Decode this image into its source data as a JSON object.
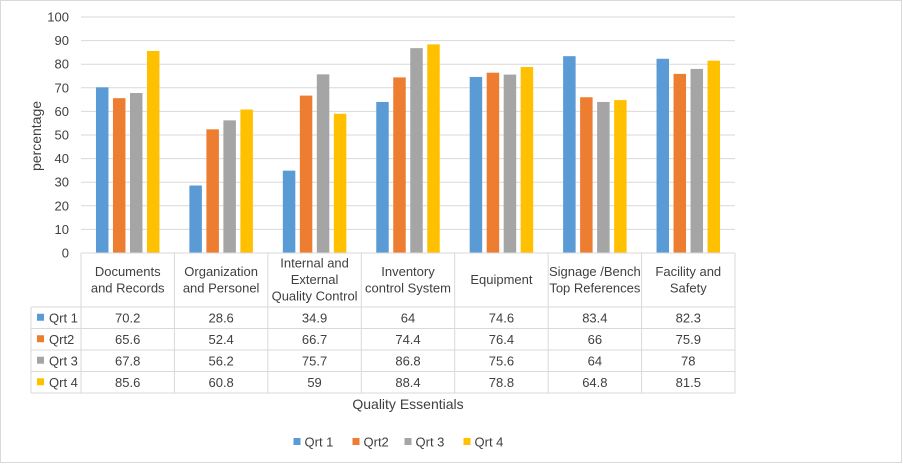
{
  "chart_data": {
    "type": "bar",
    "title": "",
    "xlabel": "Quality Essentials",
    "ylabel": "percentage",
    "ylim": [
      0,
      100
    ],
    "yticks": [
      0,
      10,
      20,
      30,
      40,
      50,
      60,
      70,
      80,
      90,
      100
    ],
    "grid": true,
    "legend_position": "bottom",
    "data_table": true,
    "categories": [
      [
        "Documents",
        "and Records"
      ],
      [
        "Organization",
        "and Personel"
      ],
      [
        "Internal and",
        "External",
        "Quality Control"
      ],
      [
        "Inventory",
        "control System"
      ],
      [
        "Equipment"
      ],
      [
        "Signage /Bench",
        "Top References"
      ],
      [
        "Facility and",
        "Safety"
      ]
    ],
    "series": [
      {
        "name": "Qrt 1",
        "color": "#5b9bd5",
        "values": [
          70.2,
          28.6,
          34.9,
          64,
          74.6,
          83.4,
          82.3
        ]
      },
      {
        "name": "Qrt2",
        "color": "#ed7d31",
        "values": [
          65.6,
          52.4,
          66.7,
          74.4,
          76.4,
          66,
          75.9
        ]
      },
      {
        "name": "Qrt 3",
        "color": "#a5a5a5",
        "values": [
          67.8,
          56.2,
          75.7,
          86.8,
          75.6,
          64,
          78
        ]
      },
      {
        "name": "Qrt 4",
        "color": "#ffc000",
        "values": [
          85.6,
          60.8,
          59,
          88.4,
          78.8,
          64.8,
          81.5
        ]
      }
    ]
  }
}
